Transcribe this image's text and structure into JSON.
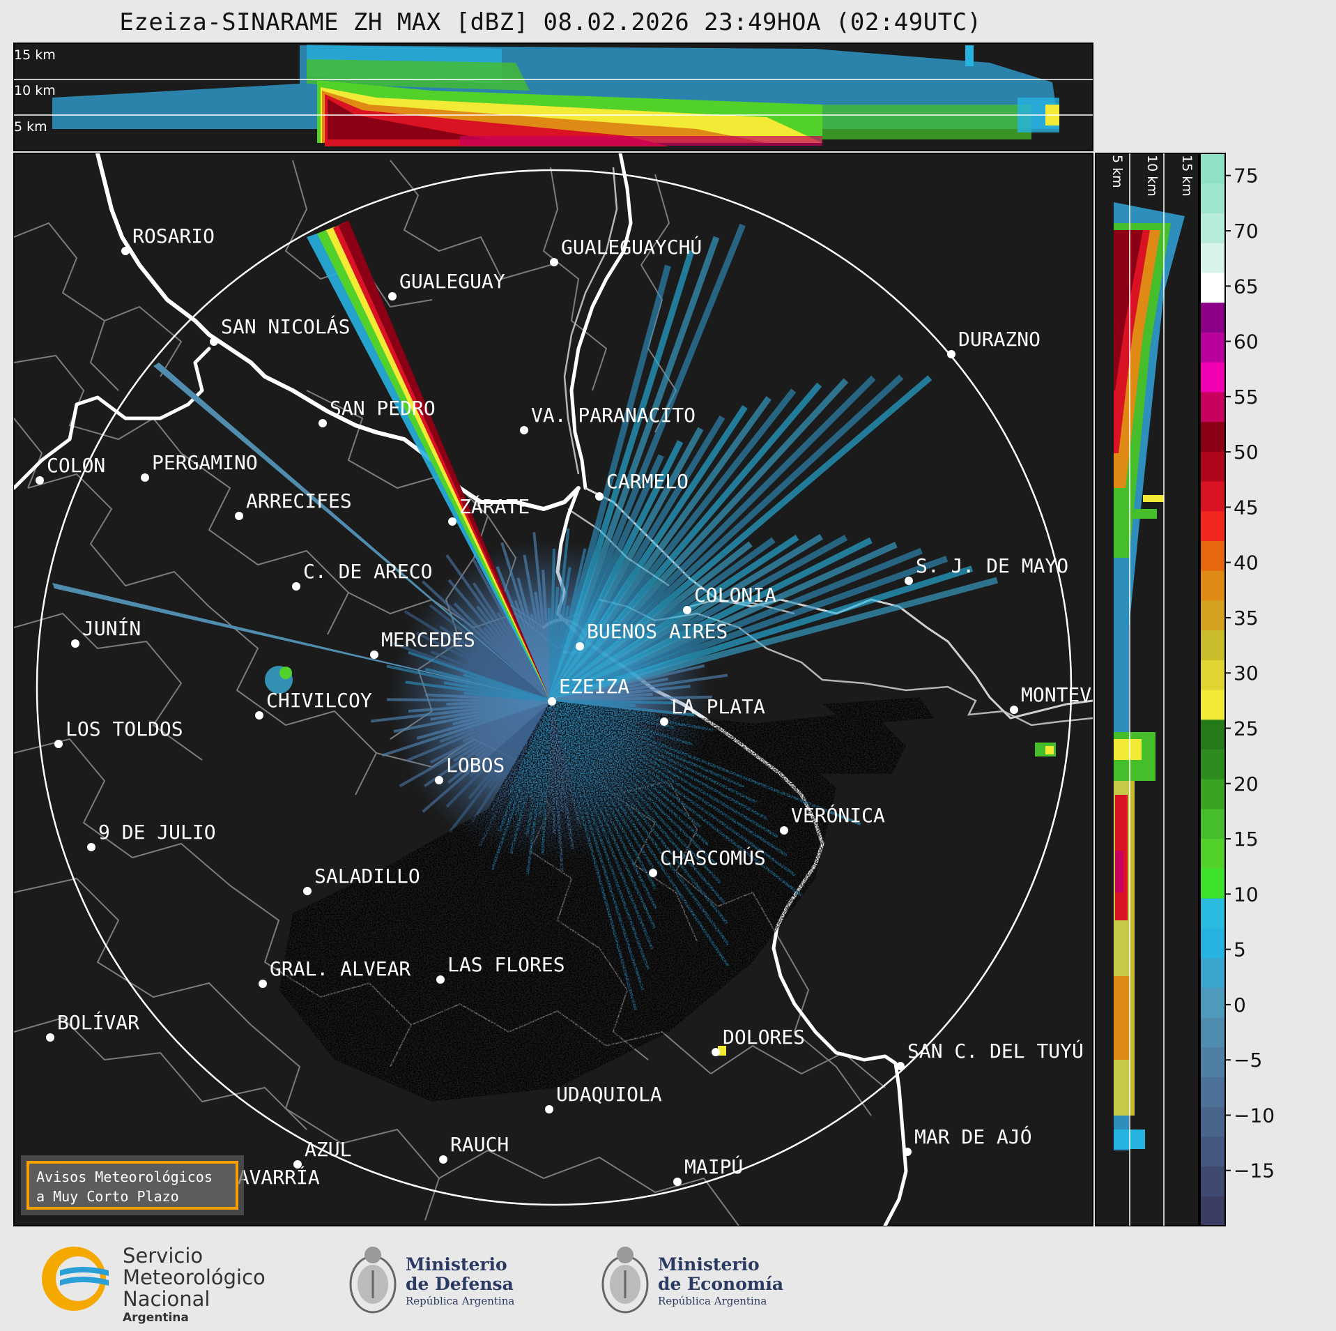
{
  "title": "Ezeiza-SINARAME ZH MAX [dBZ] 08.02.2026 23:49HOA (02:49UTC)",
  "height_labels": [
    "15 km",
    "10 km",
    "5 km"
  ],
  "colorbar": {
    "ticks": [
      "75",
      "70",
      "65",
      "60",
      "55",
      "50",
      "45",
      "40",
      "35",
      "30",
      "25",
      "20",
      "15",
      "10",
      "5",
      "0",
      "−5",
      "−10",
      "−15"
    ],
    "colors": [
      "#3b3d63",
      "#3f4a72",
      "#45587f",
      "#4a658b",
      "#4d7297",
      "#4f7fa2",
      "#4f8cae",
      "#4d9abc",
      "#3aa6cf",
      "#27b3e0",
      "#29bce0",
      "#3fe22a",
      "#52d12b",
      "#46bd2a",
      "#39a424",
      "#2e8c1e",
      "#257a1a",
      "#f2ea35",
      "#e0d332",
      "#c9bd2c",
      "#d4a21e",
      "#e08a16",
      "#e56710",
      "#f2261e",
      "#d91224",
      "#b0061c",
      "#8c0016",
      "#c8005e",
      "#f000b0",
      "#b8009a",
      "#8c0088",
      "#ffffff",
      "#d8f3ea",
      "#b6ecd9",
      "#9ee6ce",
      "#8ee0c6"
    ]
  },
  "cities": [
    {
      "name": "ROSARIO"
    },
    {
      "name": "GUALEGUAYCHÚ"
    },
    {
      "name": "GUALEGUAY"
    },
    {
      "name": "SAN NICOLÁS"
    },
    {
      "name": "DURAZNO"
    },
    {
      "name": "SAN PEDRO"
    },
    {
      "name": "VA. PARANACITO"
    },
    {
      "name": "COLON"
    },
    {
      "name": "PERGAMINO"
    },
    {
      "name": "CARMELO"
    },
    {
      "name": "ARRECIFES"
    },
    {
      "name": "ZÁRATE"
    },
    {
      "name": "S. J. DE MAYO"
    },
    {
      "name": "C. DE ARECO"
    },
    {
      "name": "COLONIA"
    },
    {
      "name": "JUNÍN"
    },
    {
      "name": "BUENOS AIRES"
    },
    {
      "name": "MERCEDES"
    },
    {
      "name": "EZEIZA"
    },
    {
      "name": "MONTEVIDEO"
    },
    {
      "name": "CHIVILCOY"
    },
    {
      "name": "LA PLATA"
    },
    {
      "name": "LOS TOLDOS"
    },
    {
      "name": "LOBOS"
    },
    {
      "name": "VERÓNICA"
    },
    {
      "name": "9 DE JULIO"
    },
    {
      "name": "CHASCOMÚS"
    },
    {
      "name": "SALADILLO"
    },
    {
      "name": "GRAL. ALVEAR"
    },
    {
      "name": "LAS FLORES"
    },
    {
      "name": "BOLÍVAR"
    },
    {
      "name": "DOLORES"
    },
    {
      "name": "SAN C. DEL TUYÚ"
    },
    {
      "name": "UDAQUIOLA"
    },
    {
      "name": "MAR DE AJÓ"
    },
    {
      "name": "RAUCH"
    },
    {
      "name": "AZUL"
    },
    {
      "name": "OLAVARRÍA"
    },
    {
      "name": "MAIPÚ"
    }
  ],
  "notice": {
    "line1": "Avisos Meteorológicos",
    "line2": "a Muy Corto Plazo"
  },
  "logos": {
    "smn": {
      "line1": "Servicio",
      "line2": "Meteorológico",
      "line3": "Nacional",
      "line4": "Argentina"
    },
    "defensa": {
      "line1": "Ministerio",
      "line2": "de Defensa",
      "line3": "República Argentina"
    },
    "economia": {
      "line1": "Ministerio",
      "line2": "de Economía",
      "line3": "República Argentina"
    }
  }
}
